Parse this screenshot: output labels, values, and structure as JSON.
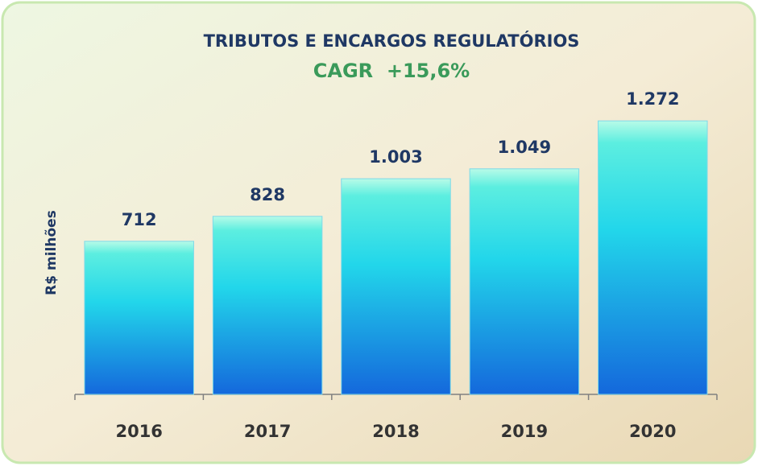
{
  "chart_data": {
    "type": "bar",
    "title": "TRIBUTOS E ENCARGOS REGULATÓRIOS",
    "subtitle": "CAGR  +15,6%",
    "y_label": "R$ milhões",
    "categories": [
      "2016",
      "2017",
      "2018",
      "2019",
      "2020"
    ],
    "values": [
      712,
      828,
      1003,
      1049,
      1272
    ],
    "value_labels": [
      "712",
      "828",
      "1.003",
      "1.049",
      "1.272"
    ],
    "ylim": [
      0,
      1400
    ],
    "grid": false
  }
}
